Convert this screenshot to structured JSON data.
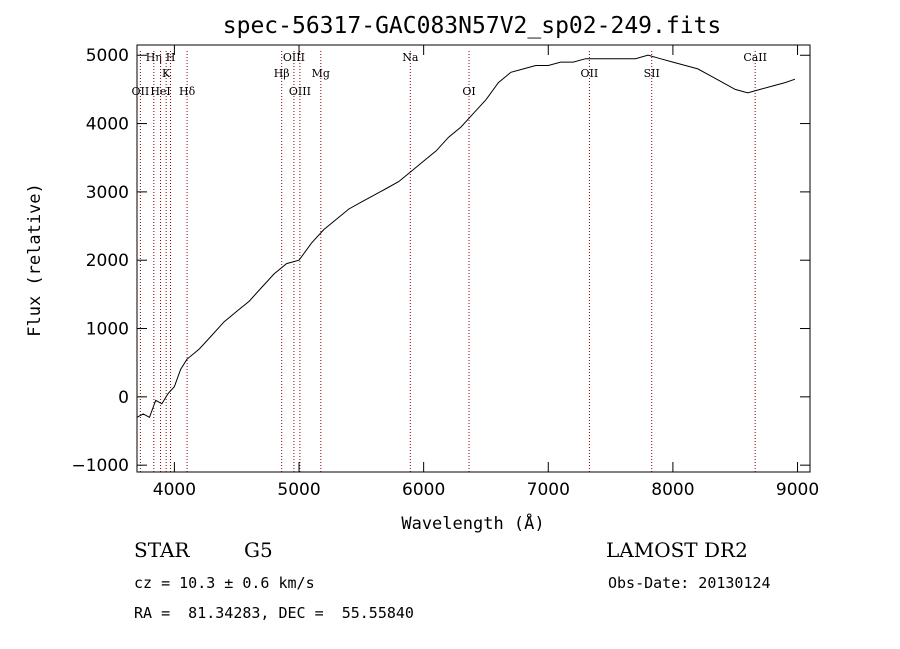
{
  "chart_data": {
    "type": "line",
    "title": "spec-56317-GAC083N57V2_sp02-249.fits",
    "xlabel": "Wavelength (Å)",
    "ylabel": "Flux (relative)",
    "xlim": [
      3700,
      9100
    ],
    "ylim": [
      -1100,
      5150
    ],
    "xticks": [
      4000,
      5000,
      6000,
      7000,
      8000,
      9000
    ],
    "yticks": [
      -1000,
      0,
      1000,
      2000,
      3000,
      4000,
      5000
    ],
    "grid": false,
    "series": [
      {
        "x": [
          3700,
          3750,
          3800,
          3850,
          3900,
          3950,
          4000,
          4050,
          4100,
          4200,
          4300,
          4400,
          4500,
          4600,
          4700,
          4800,
          4900,
          5000,
          5100,
          5200,
          5300,
          5400,
          5500,
          5600,
          5700,
          5800,
          5900,
          6000,
          6100,
          6200,
          6300,
          6400,
          6500,
          6600,
          6700,
          6800,
          6900,
          7000,
          7100,
          7200,
          7300,
          7400,
          7500,
          7600,
          7700,
          7800,
          7900,
          8000,
          8100,
          8200,
          8300,
          8400,
          8500,
          8600,
          8700,
          8800,
          8900,
          8980
        ],
        "y": [
          -300,
          -250,
          -300,
          -50,
          -100,
          50,
          150,
          400,
          550,
          700,
          900,
          1100,
          1250,
          1400,
          1600,
          1800,
          1950,
          2000,
          2250,
          2450,
          2600,
          2750,
          2850,
          2950,
          3050,
          3150,
          3300,
          3450,
          3600,
          3800,
          3950,
          4150,
          4350,
          4600,
          4750,
          4800,
          4850,
          4850,
          4900,
          4900,
          4950,
          4950,
          4950,
          4950,
          4950,
          5000,
          4950,
          4900,
          4850,
          4800,
          4700,
          4600,
          4500,
          4450,
          4500,
          4550,
          4600,
          4650
        ]
      }
    ],
    "lines": [
      {
        "label": "OII",
        "x": 3727,
        "row": 3
      },
      {
        "label": "Hη",
        "x": 3835,
        "row": 1
      },
      {
        "label": "HeI",
        "x": 3889,
        "row": 3
      },
      {
        "label": "K",
        "x": 3934,
        "row": 2
      },
      {
        "label": "H",
        "x": 3969,
        "row": 1
      },
      {
        "label": "Hδ",
        "x": 4102,
        "row": 3
      },
      {
        "label": "Hβ",
        "x": 4861,
        "row": 2
      },
      {
        "label": "OIII",
        "x": 4959,
        "row": 1
      },
      {
        "label": "OIII",
        "x": 5007,
        "row": 3
      },
      {
        "label": "Mg",
        "x": 5175,
        "row": 2
      },
      {
        "label": "Na",
        "x": 5893,
        "row": 1
      },
      {
        "label": "OI",
        "x": 6364,
        "row": 3
      },
      {
        "label": "OII",
        "x": 7330,
        "row": 2
      },
      {
        "label": "SII",
        "x": 7830,
        "row": 2
      },
      {
        "label": "CaII",
        "x": 8660,
        "row": 1
      }
    ]
  },
  "info": {
    "class": "STAR",
    "subclass": "G5",
    "survey": "LAMOST DR2",
    "cz": "cz = 10.3 ± 0.6 km/s",
    "obs_date": "Obs-Date: 20130124",
    "radec": "RA =  81.34283, DEC =  55.55840"
  }
}
